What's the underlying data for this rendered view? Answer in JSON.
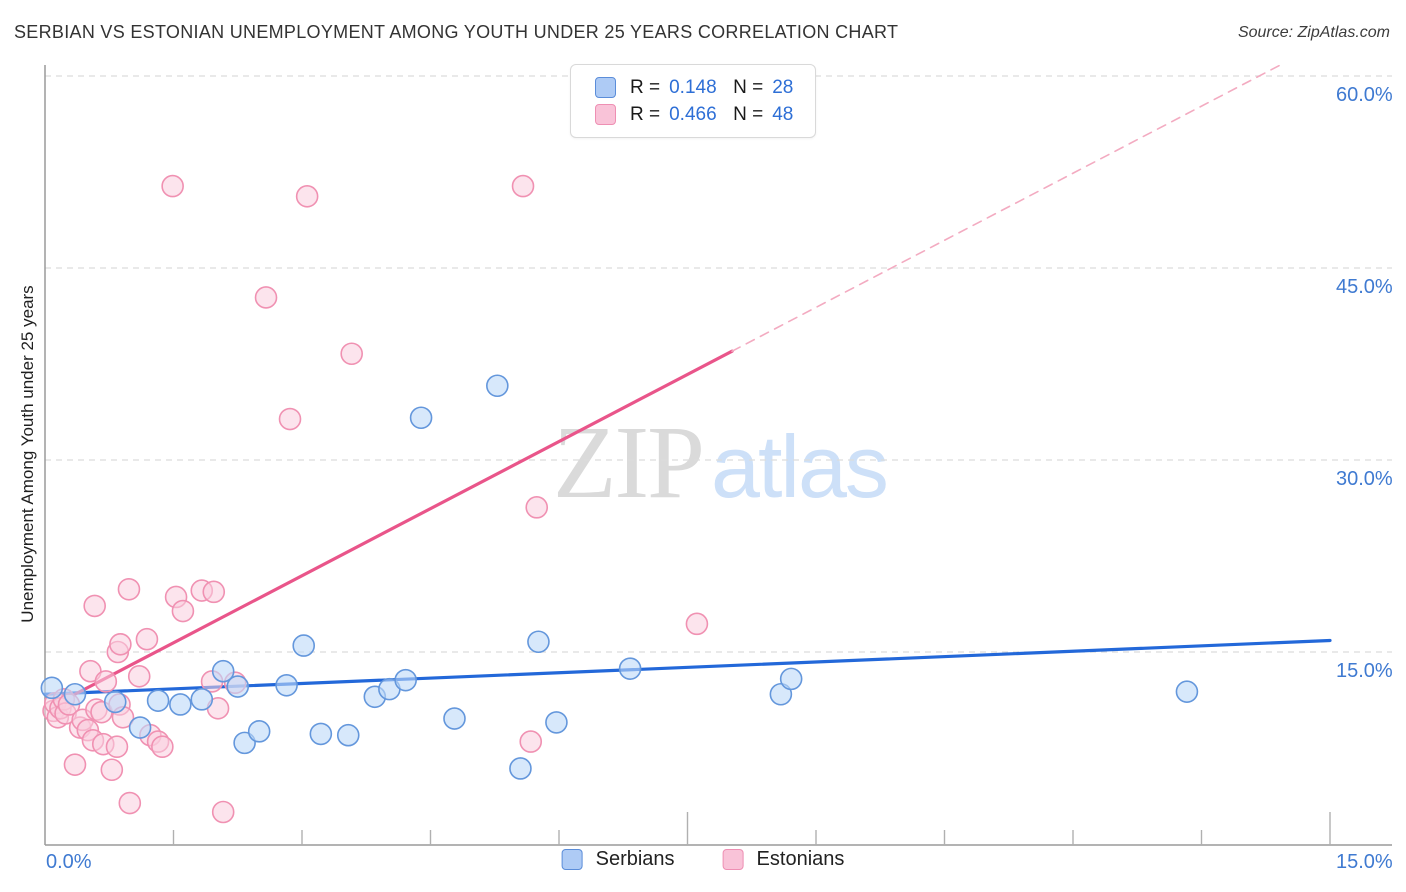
{
  "title": "SERBIAN VS ESTONIAN UNEMPLOYMENT AMONG YOUTH UNDER 25 YEARS CORRELATION CHART",
  "source": "Source: ZipAtlas.com",
  "watermark": {
    "part1": "ZIP",
    "part2": "atlas"
  },
  "y_axis_title": "Unemployment Among Youth under 25 years",
  "stats_legend": {
    "rows": [
      {
        "series": "Serbians",
        "r_label": "R =",
        "r_value": "0.148",
        "n_label": "N =",
        "n_value": "28"
      },
      {
        "series": "Estonians",
        "r_label": "R =",
        "r_value": "0.466",
        "n_label": "N =",
        "n_value": "48"
      }
    ]
  },
  "axis_labels": {
    "y_ticks": [
      "60.0%",
      "45.0%",
      "30.0%",
      "15.0%"
    ],
    "x_min": "0.0%",
    "x_max": "15.0%"
  },
  "series_legend": [
    {
      "label": "Serbians"
    },
    {
      "label": "Estonians"
    }
  ],
  "colors": {
    "serbian_fill": "rgba(188,216,248,0.6)",
    "serbian_stroke": "#6497dc",
    "serbian_trend": "#2368d9",
    "estonian_fill": "rgba(250,205,222,0.55)",
    "estonian_stroke": "#f091b2",
    "estonian_trend": "#e9558a",
    "estonian_trend_ext": "#f3abc1",
    "gridline": "#dcdcdc",
    "axis": "#9a9a9a",
    "tick": "#b0b0b0",
    "axis_text": "#3f7ad1"
  },
  "chart_data": {
    "type": "scatter",
    "title": "Serbian vs Estonian Unemployment Among Youth under 25 years Correlation Chart",
    "xlabel": "",
    "ylabel": "Unemployment Among Youth under 25 years",
    "xlim": [
      0,
      15
    ],
    "ylim": [
      0,
      61
    ],
    "x_tick_step": 1.5,
    "x_major_ticks": [
      7.5,
      15
    ],
    "y_gridlines": [
      15,
      30,
      45,
      60
    ],
    "grid": "dashed-horizontal",
    "legend_position": "top-center",
    "series": [
      {
        "name": "Serbians",
        "R": 0.148,
        "N": 28,
        "points": [
          [
            0.08,
            12.2
          ],
          [
            0.35,
            11.7
          ],
          [
            0.82,
            11.1
          ],
          [
            1.11,
            9.1
          ],
          [
            1.32,
            11.2
          ],
          [
            1.58,
            10.9
          ],
          [
            1.83,
            11.3
          ],
          [
            2.08,
            13.5
          ],
          [
            2.25,
            12.3
          ],
          [
            2.33,
            7.9
          ],
          [
            2.5,
            8.8
          ],
          [
            2.82,
            12.4
          ],
          [
            3.02,
            15.5
          ],
          [
            3.22,
            8.6
          ],
          [
            3.54,
            8.5
          ],
          [
            3.85,
            11.5
          ],
          [
            4.02,
            12.1
          ],
          [
            4.21,
            12.8
          ],
          [
            4.39,
            33.3
          ],
          [
            4.78,
            9.8
          ],
          [
            5.28,
            35.8
          ],
          [
            5.55,
            5.9
          ],
          [
            5.76,
            15.8
          ],
          [
            5.97,
            9.5
          ],
          [
            6.83,
            13.7
          ],
          [
            8.59,
            11.7
          ],
          [
            8.71,
            12.9
          ],
          [
            13.33,
            11.9
          ]
        ]
      },
      {
        "name": "Estonians",
        "R": 0.466,
        "N": 48,
        "points": [
          [
            0.1,
            10.4
          ],
          [
            0.12,
            11.0
          ],
          [
            0.15,
            9.9
          ],
          [
            0.18,
            10.6
          ],
          [
            0.22,
            11.3
          ],
          [
            0.24,
            10.2
          ],
          [
            0.28,
            10.9
          ],
          [
            0.35,
            6.2
          ],
          [
            0.41,
            9.1
          ],
          [
            0.44,
            9.7
          ],
          [
            0.5,
            8.9
          ],
          [
            0.53,
            13.5
          ],
          [
            0.56,
            8.1
          ],
          [
            0.58,
            18.6
          ],
          [
            0.6,
            10.5
          ],
          [
            0.66,
            10.3
          ],
          [
            0.68,
            7.8
          ],
          [
            0.71,
            12.7
          ],
          [
            0.78,
            5.8
          ],
          [
            0.84,
            7.6
          ],
          [
            0.85,
            15.0
          ],
          [
            0.87,
            10.9
          ],
          [
            0.88,
            15.6
          ],
          [
            0.91,
            9.9
          ],
          [
            0.98,
            19.9
          ],
          [
            0.99,
            3.2
          ],
          [
            1.1,
            13.1
          ],
          [
            1.19,
            16.0
          ],
          [
            1.23,
            8.5
          ],
          [
            1.32,
            8.0
          ],
          [
            1.37,
            7.6
          ],
          [
            1.49,
            51.4
          ],
          [
            1.53,
            19.3
          ],
          [
            1.61,
            18.2
          ],
          [
            1.83,
            19.8
          ],
          [
            1.95,
            12.7
          ],
          [
            1.97,
            19.7
          ],
          [
            2.02,
            10.6
          ],
          [
            2.08,
            2.5
          ],
          [
            2.22,
            12.6
          ],
          [
            2.58,
            42.7
          ],
          [
            2.86,
            33.2
          ],
          [
            3.06,
            50.6
          ],
          [
            3.58,
            38.3
          ],
          [
            5.58,
            51.4
          ],
          [
            5.67,
            8.0
          ],
          [
            5.74,
            26.3
          ],
          [
            7.61,
            17.2
          ]
        ]
      }
    ],
    "trendlines": [
      {
        "series": "Serbians",
        "style": "solid",
        "x1": 0,
        "y1": 11.7,
        "x2": 15,
        "y2": 15.9
      },
      {
        "series": "Estonians",
        "style": "solid",
        "x1": 0.35,
        "y1": 11.7,
        "x2": 8.02,
        "y2": 38.5
      },
      {
        "series": "Estonians",
        "style": "dashed",
        "x1": 8.02,
        "y1": 38.5,
        "x2": 14.46,
        "y2": 61.0
      }
    ]
  }
}
